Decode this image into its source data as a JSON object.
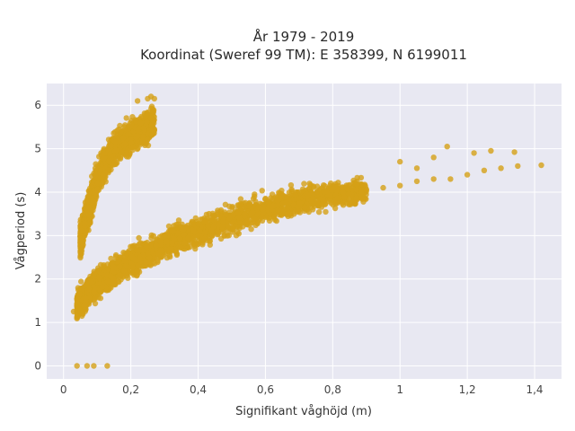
{
  "chart_data": {
    "type": "scatter",
    "title_line1": "År 1979 - 2019",
    "title_line2": "Koordinat (Sweref 99 TM): E 358399, N 6199011",
    "xlabel": "Signifikant våghöjd (m)",
    "ylabel": "Vågperiod (s)",
    "xlim": [
      -0.05,
      1.48
    ],
    "ylim": [
      -0.3,
      6.5
    ],
    "x_ticks": [
      0,
      0.2,
      0.4,
      0.6,
      0.8,
      1,
      1.2,
      1.4
    ],
    "x_tick_labels": [
      "0",
      "0,2",
      "0,4",
      "0,6",
      "0,8",
      "1",
      "1,2",
      "1,4"
    ],
    "y_ticks": [
      0,
      1,
      2,
      3,
      4,
      5,
      6
    ],
    "y_tick_labels": [
      "0",
      "1",
      "2",
      "3",
      "4",
      "5",
      "6"
    ],
    "grid": true,
    "colors": {
      "points": "#d4a017",
      "plot_background": "#e8e8f2",
      "grid": "#ffffff"
    },
    "clusters": [
      {
        "x_range": [
          0.05,
          0.27
        ],
        "y_center_at_x": [
          [
            0.05,
            2.9
          ],
          [
            0.1,
            4.3
          ],
          [
            0.15,
            5.0
          ],
          [
            0.2,
            5.3
          ],
          [
            0.27,
            5.6
          ]
        ],
        "spread": 0.35,
        "count": 1400
      },
      {
        "x_range": [
          0.04,
          0.9
        ],
        "y_center_at_x": [
          [
            0.04,
            1.4
          ],
          [
            0.1,
            1.9
          ],
          [
            0.2,
            2.4
          ],
          [
            0.3,
            2.8
          ],
          [
            0.4,
            3.1
          ],
          [
            0.5,
            3.35
          ],
          [
            0.6,
            3.6
          ],
          [
            0.7,
            3.8
          ],
          [
            0.8,
            3.95
          ],
          [
            0.9,
            4.0
          ]
        ],
        "spread": 0.3,
        "count": 2600
      }
    ],
    "outliers": [
      [
        0.04,
        0.0
      ],
      [
        0.07,
        0.0
      ],
      [
        0.09,
        0.0
      ],
      [
        0.13,
        0.0
      ],
      [
        0.03,
        1.25
      ],
      [
        0.04,
        1.25
      ],
      [
        0.05,
        1.25
      ],
      [
        0.9,
        4.05
      ],
      [
        0.95,
        4.1
      ],
      [
        1.0,
        4.15
      ],
      [
        1.05,
        4.25
      ],
      [
        1.1,
        4.3
      ],
      [
        1.15,
        4.3
      ],
      [
        1.2,
        4.4
      ],
      [
        1.25,
        4.5
      ],
      [
        1.3,
        4.55
      ],
      [
        1.35,
        4.6
      ],
      [
        1.42,
        4.62
      ],
      [
        1.0,
        4.7
      ],
      [
        1.05,
        4.55
      ],
      [
        1.1,
        4.8
      ],
      [
        1.14,
        5.05
      ],
      [
        1.22,
        4.9
      ],
      [
        1.27,
        4.95
      ],
      [
        1.34,
        4.92
      ],
      [
        0.22,
        6.1
      ],
      [
        0.25,
        6.15
      ],
      [
        0.26,
        6.2
      ],
      [
        0.27,
        6.15
      ]
    ]
  }
}
